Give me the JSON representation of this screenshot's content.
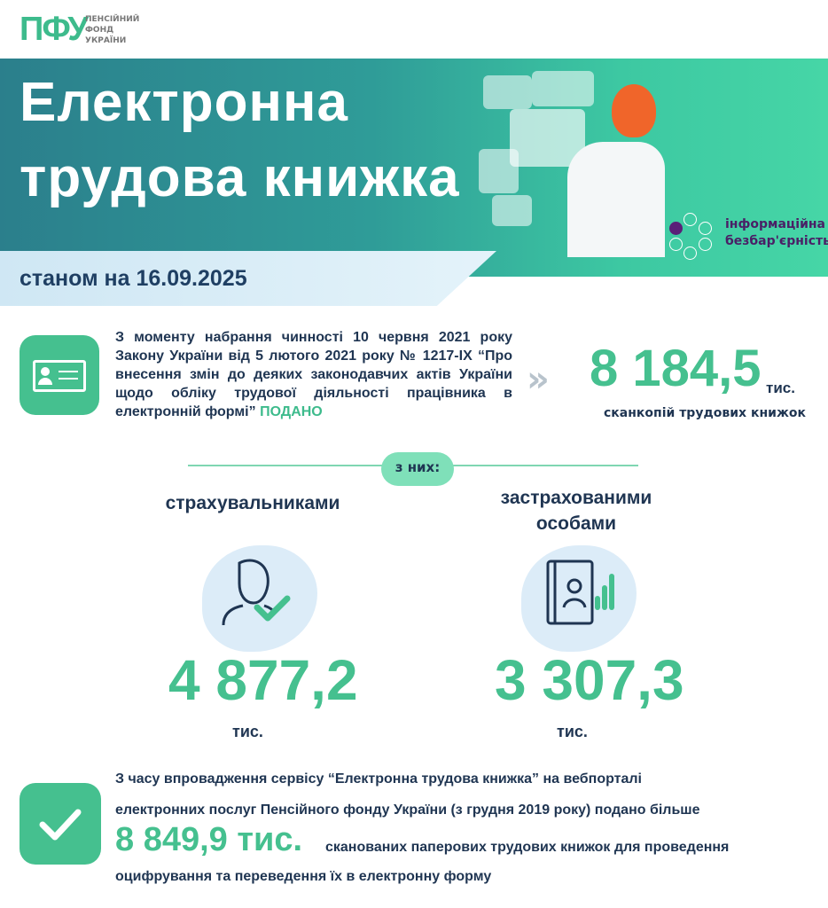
{
  "logo": {
    "mark": "ПФУ",
    "lines": [
      "ПЕНСІЙНИЙ",
      "ФОНД",
      "УКРАЇНИ"
    ]
  },
  "banner": {
    "title_line1": "Електронна",
    "title_line2": "трудова книжка",
    "date": "станом на 16.09.2025",
    "badge": {
      "line1": "інформаційна",
      "line2": "безбар'єрність"
    }
  },
  "colors": {
    "accent_green": "#45c08f",
    "navy": "#1f3552",
    "banner_start": "#2b7f8c",
    "banner_end": "#46d6a6",
    "badge_purple": "#5a1f78"
  },
  "section1": {
    "text": "З моменту набрання чинності 10 червня 2021 року Закону України від 5 лютого 2021 року № 1217-IX “Про внесення змін до деяких законодавчих актів України щодо обліку трудової діяльності працівника в електронній формі”",
    "highlight": "ПОДАНО",
    "total": "8 184,5",
    "total_unit": "тис.",
    "total_caption": "сканкопій трудових книжок",
    "icon": "id-card-icon"
  },
  "of_them": "з них:",
  "split": [
    {
      "label": "страхувальниками",
      "value": "4 877,2",
      "unit": "тис.",
      "icon": "user-check-icon"
    },
    {
      "label_line1": "застрахованими",
      "label_line2": "особами",
      "value": "3 307,3",
      "unit": "тис.",
      "icon": "workbook-person-icon"
    }
  ],
  "section2": {
    "line1": "З часу впровадження сервісу “Електронна трудова книжка” на вебпорталі",
    "line2": "електронних послуг Пенсійного фонду України (з грудня 2019 року) подано більше",
    "value": "8 849,9 тис.",
    "line3": "сканованих паперових трудових книжок для проведення",
    "line4": "оцифрування та переведення їх в електронну форму",
    "icon": "checkmark-icon"
  }
}
